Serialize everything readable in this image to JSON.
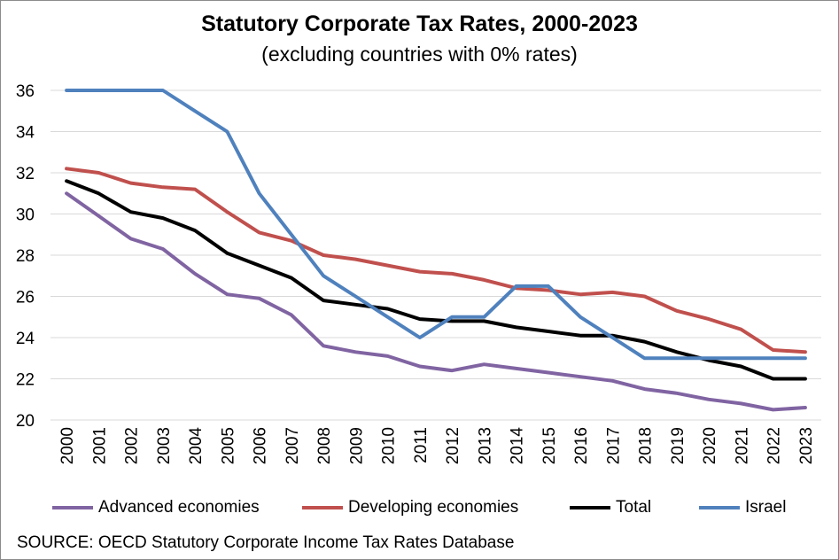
{
  "chart_data": {
    "type": "line",
    "title": "Statutory Corporate Tax Rates, 2000-2023",
    "subtitle": "(excluding countries with 0% rates)",
    "x": [
      "2000",
      "2001",
      "2002",
      "2003",
      "2004",
      "2005",
      "2006",
      "2007",
      "2008",
      "2009",
      "2010",
      "2011",
      "2012",
      "2013",
      "2014",
      "2015",
      "2016",
      "2017",
      "2018",
      "2019",
      "2020",
      "2021",
      "2022",
      "2023"
    ],
    "ylim": [
      20,
      36
    ],
    "yticks": [
      "20",
      "22",
      "24",
      "26",
      "28",
      "30",
      "32",
      "34",
      "36"
    ],
    "grid": true,
    "legend_position": "bottom",
    "series": [
      {
        "name": "Advanced economies",
        "color": "#8064A2",
        "values": [
          31.0,
          29.9,
          28.8,
          28.3,
          27.1,
          26.1,
          25.9,
          25.1,
          23.6,
          23.3,
          23.1,
          22.6,
          22.4,
          22.7,
          22.5,
          22.3,
          22.1,
          21.9,
          21.5,
          21.3,
          21.0,
          20.8,
          20.5,
          20.6
        ]
      },
      {
        "name": "Developing economies",
        "color": "#C0504D",
        "values": [
          32.2,
          32.0,
          31.5,
          31.3,
          31.2,
          30.1,
          29.1,
          28.7,
          28.0,
          27.8,
          27.5,
          27.2,
          27.1,
          26.8,
          26.4,
          26.3,
          26.1,
          26.2,
          26.0,
          25.3,
          24.9,
          24.4,
          23.4,
          23.3
        ]
      },
      {
        "name": "Total",
        "color": "#000000",
        "values": [
          31.6,
          31.0,
          30.1,
          29.8,
          29.2,
          28.1,
          27.5,
          26.9,
          25.8,
          25.6,
          25.4,
          24.9,
          24.8,
          24.8,
          24.5,
          24.3,
          24.1,
          24.1,
          23.8,
          23.3,
          22.9,
          22.6,
          22.0,
          22.0
        ]
      },
      {
        "name": "Israel",
        "color": "#4F81BD",
        "values": [
          36,
          36,
          36,
          36,
          35,
          34,
          31,
          29,
          27,
          26,
          25,
          24,
          25,
          25,
          26.5,
          26.5,
          25,
          24,
          23,
          23,
          23,
          23,
          23,
          23
        ]
      }
    ],
    "source": "SOURCE: OECD Statutory Corporate Income Tax Rates Database"
  }
}
